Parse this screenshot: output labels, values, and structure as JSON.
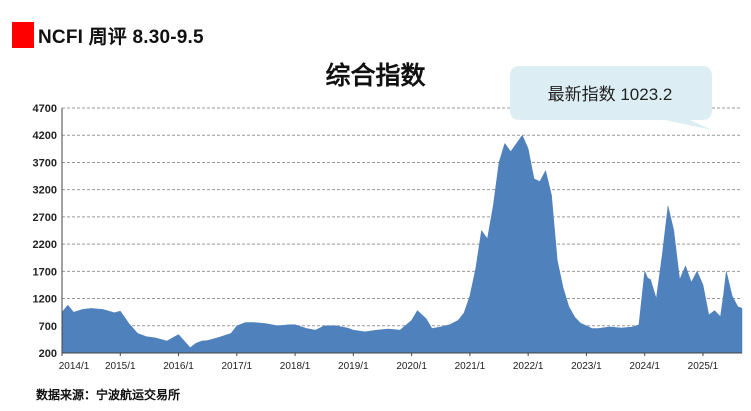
{
  "header": {
    "title": "NCFI 周评 8.30-9.5",
    "accent_color": "#ff0000"
  },
  "callout": {
    "text": "最新指数 1023.2",
    "bg_color": "#dceef4"
  },
  "source": {
    "text": "数据来源：宁波航运交易所"
  },
  "chart_data": {
    "type": "area",
    "title": "综合指数",
    "xlabel": "",
    "ylabel": "",
    "ylim": [
      200,
      4700
    ],
    "yticks": [
      200,
      700,
      1200,
      1700,
      2200,
      2700,
      3200,
      3700,
      4200,
      4700
    ],
    "xticks": [
      "2014/1",
      "2015/1",
      "2016/1",
      "2017/1",
      "2018/1",
      "2019/1",
      "2020/1",
      "2021/1",
      "2022/1",
      "2023/1",
      "2024/1",
      "2025/1"
    ],
    "grid": true,
    "color": "#4f81bd",
    "latest_value": 1023.2,
    "series": [
      {
        "x": [
          2014.0,
          2014.1,
          2014.2,
          2014.35,
          2014.5,
          2014.7,
          2014.9,
          2015.0,
          2015.15,
          2015.3,
          2015.45,
          2015.6,
          2015.8,
          2016.0,
          2016.2,
          2016.3,
          2016.4,
          2016.5,
          2016.7,
          2016.9,
          2017.0,
          2017.15,
          2017.3,
          2017.5,
          2017.7,
          2017.9,
          2018.0,
          2018.2,
          2018.35,
          2018.5,
          2018.7,
          2018.9,
          2019.0,
          2019.2,
          2019.4,
          2019.6,
          2019.8,
          2020.0,
          2020.1,
          2020.25,
          2020.35,
          2020.5,
          2020.65,
          2020.8,
          2020.9,
          2021.0,
          2021.1,
          2021.2,
          2021.3,
          2021.4,
          2021.5,
          2021.6,
          2021.7,
          2021.8,
          2021.9,
          2022.0,
          2022.1,
          2022.2,
          2022.3,
          2022.4,
          2022.5,
          2022.6,
          2022.7,
          2022.8,
          2022.9,
          2023.0,
          2023.1,
          2023.2,
          2023.4,
          2023.6,
          2023.8,
          2023.9,
          2024.0,
          2024.05,
          2024.1,
          2024.2,
          2024.3,
          2024.4,
          2024.5,
          2024.55,
          2024.6,
          2024.7,
          2024.8,
          2024.9,
          2025.0,
          2025.1,
          2025.2,
          2025.3,
          2025.35,
          2025.4,
          2025.5,
          2025.6,
          2025.67
        ],
        "y": [
          950,
          1080,
          950,
          1000,
          1020,
          1000,
          940,
          970,
          740,
          560,
          500,
          480,
          420,
          540,
          300,
          380,
          420,
          430,
          490,
          560,
          700,
          760,
          760,
          740,
          700,
          720,
          720,
          650,
          620,
          700,
          700,
          660,
          620,
          590,
          620,
          640,
          620,
          800,
          980,
          830,
          650,
          680,
          720,
          800,
          940,
          1250,
          1750,
          2450,
          2300,
          2900,
          3700,
          4050,
          3900,
          4050,
          4200,
          3950,
          3400,
          3350,
          3550,
          3100,
          1900,
          1400,
          1050,
          860,
          750,
          700,
          650,
          650,
          680,
          660,
          680,
          720,
          1700,
          1580,
          1550,
          1200,
          2000,
          2900,
          2450,
          2000,
          1550,
          1800,
          1500,
          1700,
          1450,
          900,
          980,
          870,
          1250,
          1700,
          1250,
          1050,
          1023.2
        ]
      }
    ]
  }
}
